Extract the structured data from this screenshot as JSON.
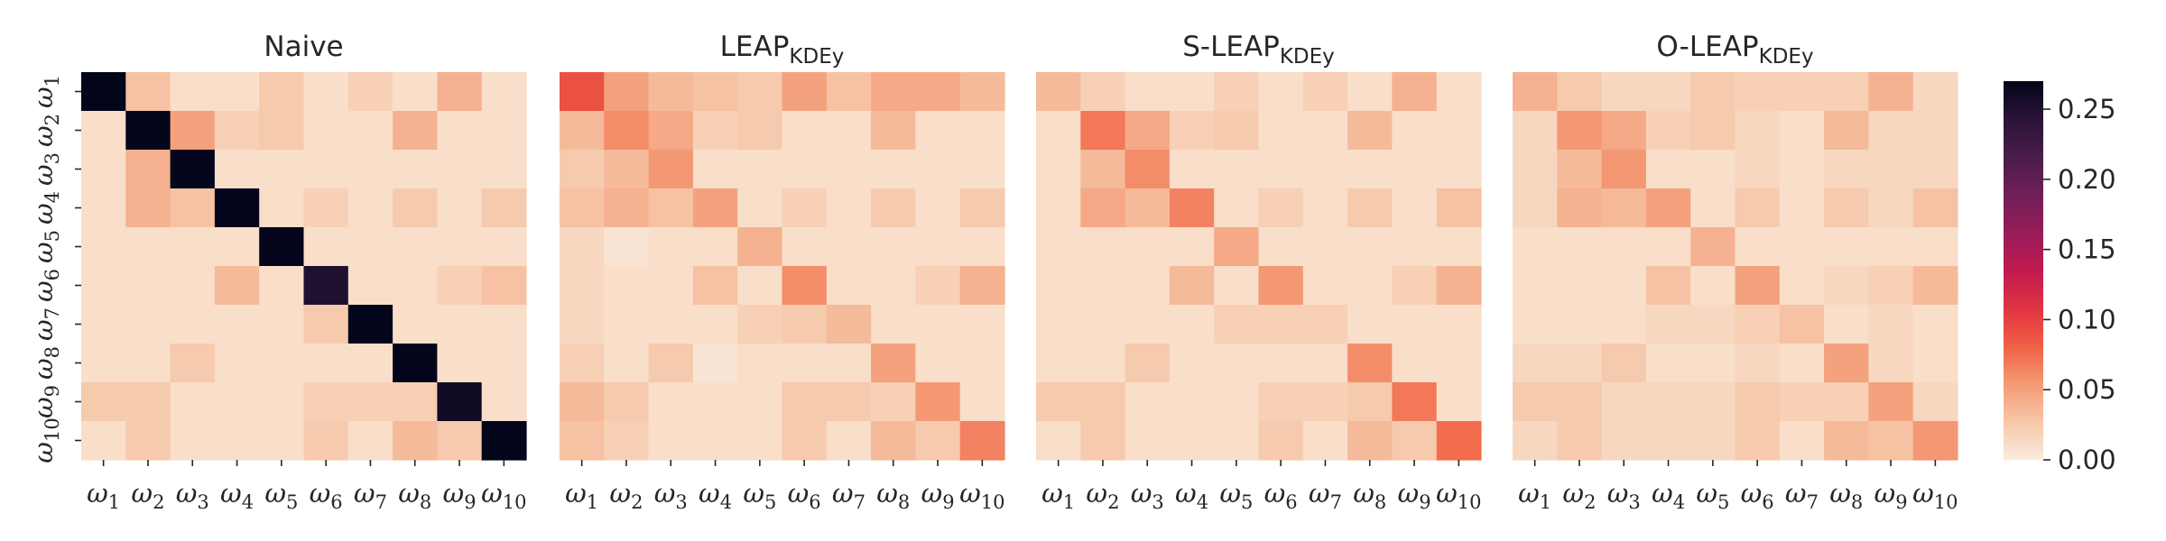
{
  "chart_data": [
    {
      "type": "heatmap",
      "title": {
        "main": "Naive",
        "sub": ""
      },
      "x_tick_labels": [
        "ω1",
        "ω2",
        "ω3",
        "ω4",
        "ω5",
        "ω6",
        "ω7",
        "ω8",
        "ω9",
        "ω10"
      ],
      "y_tick_labels": [
        "ω1",
        "ω2",
        "ω3",
        "ω4",
        "ω5",
        "ω6",
        "ω7",
        "ω8",
        "ω9",
        "ω10"
      ],
      "values": [
        [
          0.27,
          0.03,
          0.01,
          0.01,
          0.025,
          0.01,
          0.02,
          0.01,
          0.04,
          0.01
        ],
        [
          0.01,
          0.27,
          0.05,
          0.02,
          0.025,
          0.01,
          0.01,
          0.04,
          0.01,
          0.01
        ],
        [
          0.01,
          0.04,
          0.27,
          0.01,
          0.01,
          0.01,
          0.01,
          0.01,
          0.01,
          0.01
        ],
        [
          0.01,
          0.04,
          0.03,
          0.27,
          0.01,
          0.02,
          0.01,
          0.025,
          0.01,
          0.025
        ],
        [
          0.01,
          0.01,
          0.01,
          0.01,
          0.27,
          0.01,
          0.01,
          0.01,
          0.01,
          0.01
        ],
        [
          0.01,
          0.01,
          0.01,
          0.035,
          0.01,
          0.25,
          0.01,
          0.01,
          0.02,
          0.03
        ],
        [
          0.01,
          0.01,
          0.01,
          0.01,
          0.01,
          0.025,
          0.27,
          0.01,
          0.01,
          0.01
        ],
        [
          0.01,
          0.01,
          0.025,
          0.01,
          0.01,
          0.01,
          0.01,
          0.27,
          0.01,
          0.01
        ],
        [
          0.025,
          0.025,
          0.01,
          0.01,
          0.01,
          0.02,
          0.02,
          0.02,
          0.26,
          0.01
        ],
        [
          0.01,
          0.025,
          0.01,
          0.01,
          0.01,
          0.025,
          0.01,
          0.035,
          0.025,
          0.27
        ]
      ]
    },
    {
      "type": "heatmap",
      "title": {
        "main": "LEAP",
        "sub": "KDEy"
      },
      "x_tick_labels": [
        "ω1",
        "ω2",
        "ω3",
        "ω4",
        "ω5",
        "ω6",
        "ω7",
        "ω8",
        "ω9",
        "ω10"
      ],
      "y_tick_labels": [],
      "values": [
        [
          0.09,
          0.05,
          0.035,
          0.03,
          0.025,
          0.05,
          0.03,
          0.045,
          0.045,
          0.035
        ],
        [
          0.035,
          0.06,
          0.045,
          0.02,
          0.025,
          0.01,
          0.01,
          0.035,
          0.01,
          0.01
        ],
        [
          0.025,
          0.035,
          0.055,
          0.01,
          0.01,
          0.01,
          0.01,
          0.01,
          0.01,
          0.01
        ],
        [
          0.03,
          0.04,
          0.03,
          0.05,
          0.01,
          0.02,
          0.01,
          0.025,
          0.01,
          0.025
        ],
        [
          0.015,
          0.005,
          0.01,
          0.01,
          0.04,
          0.01,
          0.01,
          0.01,
          0.01,
          0.01
        ],
        [
          0.015,
          0.01,
          0.01,
          0.03,
          0.01,
          0.06,
          0.01,
          0.01,
          0.02,
          0.04
        ],
        [
          0.015,
          0.01,
          0.01,
          0.01,
          0.02,
          0.025,
          0.035,
          0.01,
          0.01,
          0.01
        ],
        [
          0.02,
          0.01,
          0.025,
          0.005,
          0.01,
          0.01,
          0.01,
          0.05,
          0.01,
          0.01
        ],
        [
          0.035,
          0.025,
          0.01,
          0.01,
          0.01,
          0.025,
          0.025,
          0.02,
          0.055,
          0.01
        ],
        [
          0.03,
          0.02,
          0.01,
          0.01,
          0.01,
          0.025,
          0.01,
          0.035,
          0.025,
          0.065
        ]
      ]
    },
    {
      "type": "heatmap",
      "title": {
        "main": "S-LEAP",
        "sub": "KDEy"
      },
      "x_tick_labels": [
        "ω1",
        "ω2",
        "ω3",
        "ω4",
        "ω5",
        "ω6",
        "ω7",
        "ω8",
        "ω9",
        "ω10"
      ],
      "y_tick_labels": [],
      "values": [
        [
          0.035,
          0.02,
          0.01,
          0.01,
          0.02,
          0.01,
          0.02,
          0.01,
          0.04,
          0.01
        ],
        [
          0.01,
          0.07,
          0.045,
          0.02,
          0.025,
          0.01,
          0.01,
          0.035,
          0.01,
          0.01
        ],
        [
          0.01,
          0.035,
          0.06,
          0.01,
          0.01,
          0.01,
          0.01,
          0.01,
          0.01,
          0.01
        ],
        [
          0.01,
          0.045,
          0.035,
          0.065,
          0.01,
          0.02,
          0.01,
          0.025,
          0.01,
          0.03
        ],
        [
          0.01,
          0.01,
          0.01,
          0.01,
          0.045,
          0.01,
          0.01,
          0.01,
          0.01,
          0.01
        ],
        [
          0.01,
          0.01,
          0.01,
          0.035,
          0.01,
          0.055,
          0.01,
          0.01,
          0.02,
          0.04
        ],
        [
          0.01,
          0.01,
          0.01,
          0.01,
          0.02,
          0.02,
          0.02,
          0.01,
          0.01,
          0.01
        ],
        [
          0.01,
          0.01,
          0.025,
          0.01,
          0.01,
          0.01,
          0.01,
          0.06,
          0.01,
          0.01
        ],
        [
          0.025,
          0.025,
          0.01,
          0.01,
          0.01,
          0.02,
          0.02,
          0.025,
          0.07,
          0.01
        ],
        [
          0.01,
          0.025,
          0.01,
          0.01,
          0.01,
          0.025,
          0.01,
          0.035,
          0.025,
          0.075
        ]
      ]
    },
    {
      "type": "heatmap",
      "title": {
        "main": "O-LEAP",
        "sub": "KDEy"
      },
      "x_tick_labels": [
        "ω1",
        "ω2",
        "ω3",
        "ω4",
        "ω5",
        "ω6",
        "ω7",
        "ω8",
        "ω9",
        "ω10"
      ],
      "y_tick_labels": [],
      "values": [
        [
          0.04,
          0.025,
          0.015,
          0.015,
          0.025,
          0.02,
          0.02,
          0.02,
          0.04,
          0.015
        ],
        [
          0.015,
          0.055,
          0.045,
          0.02,
          0.025,
          0.015,
          0.01,
          0.035,
          0.015,
          0.015
        ],
        [
          0.015,
          0.035,
          0.055,
          0.01,
          0.01,
          0.015,
          0.01,
          0.015,
          0.015,
          0.015
        ],
        [
          0.015,
          0.04,
          0.035,
          0.05,
          0.01,
          0.025,
          0.01,
          0.025,
          0.015,
          0.03
        ],
        [
          0.01,
          0.01,
          0.01,
          0.01,
          0.04,
          0.01,
          0.01,
          0.01,
          0.01,
          0.01
        ],
        [
          0.01,
          0.01,
          0.01,
          0.03,
          0.01,
          0.05,
          0.01,
          0.015,
          0.02,
          0.035
        ],
        [
          0.01,
          0.01,
          0.01,
          0.015,
          0.015,
          0.02,
          0.03,
          0.01,
          0.015,
          0.01
        ],
        [
          0.015,
          0.015,
          0.025,
          0.01,
          0.01,
          0.015,
          0.01,
          0.05,
          0.015,
          0.01
        ],
        [
          0.025,
          0.025,
          0.015,
          0.015,
          0.015,
          0.025,
          0.02,
          0.02,
          0.05,
          0.015
        ],
        [
          0.015,
          0.025,
          0.015,
          0.015,
          0.015,
          0.025,
          0.01,
          0.035,
          0.03,
          0.055
        ]
      ]
    }
  ],
  "colorbar": {
    "range": [
      0,
      0.27
    ],
    "ticks": [
      "0.00",
      "0.05",
      "0.10",
      "0.15",
      "0.20",
      "0.25"
    ],
    "tick_values": [
      0.0,
      0.05,
      0.1,
      0.15,
      0.2,
      0.25
    ],
    "colormap": "rocket_r"
  }
}
